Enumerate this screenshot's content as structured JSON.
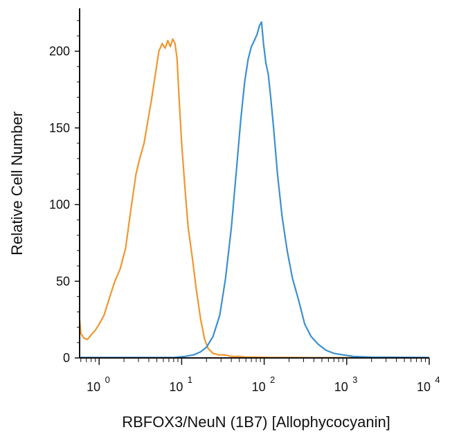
{
  "chart_data": {
    "type": "line",
    "title": "",
    "xlabel": "RBFOX3/NeuN (1B7) [Allophycocyanin]",
    "ylabel": "Relative Cell Number",
    "x_scale": "log",
    "xlim": [
      0.58,
      10000
    ],
    "ylim": [
      0,
      228
    ],
    "x_ticks": [
      {
        "base": "10",
        "exp": "0",
        "value": 1
      },
      {
        "base": "10",
        "exp": "1",
        "value": 10
      },
      {
        "base": "10",
        "exp": "2",
        "value": 100
      },
      {
        "base": "10",
        "exp": "3",
        "value": 1000
      },
      {
        "base": "10",
        "exp": "4",
        "value": 10000
      }
    ],
    "y_ticks": [
      0,
      50,
      100,
      150,
      200
    ],
    "grid": false,
    "legend": "none",
    "series": [
      {
        "color": "#f0962e",
        "x": [
          0.58,
          0.6,
          0.65,
          0.72,
          0.8,
          0.9,
          1.0,
          1.15,
          1.35,
          1.55,
          1.8,
          2.1,
          2.4,
          2.8,
          3.1,
          3.5,
          3.9,
          4.3,
          4.8,
          5.3,
          5.8,
          6.3,
          6.8,
          7.3,
          7.8,
          8.3,
          8.8,
          9.3,
          10,
          11,
          12,
          13.5,
          15,
          17,
          19,
          21,
          24,
          28,
          33,
          40,
          50,
          60,
          80,
          120,
          200,
          400,
          1000,
          10000
        ],
        "y": [
          25,
          16,
          13,
          12,
          15,
          18,
          22,
          28,
          40,
          50,
          58,
          72,
          95,
          120,
          130,
          140,
          155,
          168,
          185,
          200,
          205,
          202,
          207,
          203,
          208,
          205,
          195,
          170,
          140,
          110,
          85,
          65,
          45,
          25,
          12,
          6,
          3,
          2,
          2,
          1,
          1,
          0.5,
          0.5,
          0.3,
          0.3,
          0.2,
          0.2,
          0.2
        ]
      },
      {
        "color": "#3a8fd1",
        "x": [
          0.58,
          1,
          3,
          8,
          11,
          14,
          17,
          20,
          24,
          29,
          34,
          40,
          46,
          52,
          58,
          64,
          70,
          76,
          82,
          88,
          93,
          98,
          105,
          112,
          120,
          130,
          145,
          165,
          190,
          220,
          260,
          310,
          370,
          450,
          560,
          700,
          900,
          1200,
          2000,
          10000
        ],
        "y": [
          0.3,
          0.3,
          0.3,
          0.3,
          1,
          2,
          4,
          7,
          14,
          28,
          52,
          85,
          122,
          155,
          180,
          195,
          203,
          207,
          211,
          217,
          219,
          205,
          192,
          185,
          170,
          150,
          120,
          92,
          70,
          52,
          38,
          22,
          14,
          9,
          5,
          3,
          2,
          1,
          0.5,
          0.3
        ]
      }
    ]
  }
}
